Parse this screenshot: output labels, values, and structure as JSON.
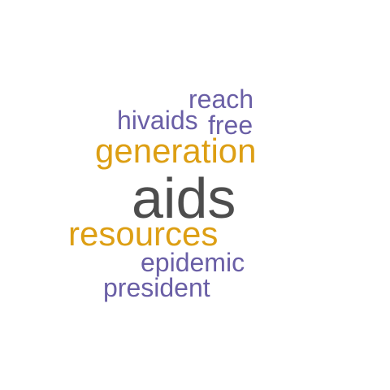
{
  "colors": {
    "gray": "#4d4d4d",
    "gold": "#dd9f14",
    "purple": "#6a5fa6"
  },
  "words": [
    {
      "text": "aids",
      "color": "gray"
    },
    {
      "text": "generation",
      "color": "gold"
    },
    {
      "text": "resources",
      "color": "gold"
    },
    {
      "text": "reach",
      "color": "purple"
    },
    {
      "text": "hivaids",
      "color": "purple"
    },
    {
      "text": "free",
      "color": "purple"
    },
    {
      "text": "epidemic",
      "color": "purple"
    },
    {
      "text": "president",
      "color": "purple"
    }
  ]
}
